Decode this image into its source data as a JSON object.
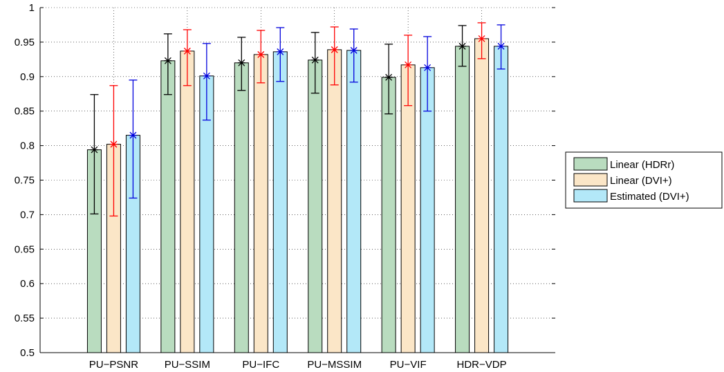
{
  "chart_data": {
    "type": "bar",
    "categories": [
      "PU−PSNR",
      "PU−SSIM",
      "PU−IFC",
      "PU−MSSIM",
      "PU−VIF",
      "HDR−VDP"
    ],
    "ylim": [
      0.5,
      1
    ],
    "yticks": [
      "0.5",
      "0.55",
      "0.6",
      "0.65",
      "0.7",
      "0.75",
      "0.8",
      "0.85",
      "0.9",
      "0.95",
      "1"
    ],
    "grid": true,
    "legend_position": "right",
    "series": [
      {
        "name": "Linear (HDRr)",
        "color": "#b9dcbf",
        "error_color": "#000000",
        "values": [
          0.794,
          0.923,
          0.92,
          0.924,
          0.899,
          0.944
        ],
        "err_low": [
          0.701,
          0.874,
          0.88,
          0.876,
          0.846,
          0.915
        ],
        "err_high": [
          0.874,
          0.962,
          0.957,
          0.964,
          0.947,
          0.974
        ]
      },
      {
        "name": "Linear (DVI+)",
        "color": "#fbe6c7",
        "error_color": "#ff0000",
        "values": [
          0.802,
          0.937,
          0.932,
          0.939,
          0.917,
          0.955
        ],
        "err_low": [
          0.698,
          0.887,
          0.891,
          0.888,
          0.858,
          0.926
        ],
        "err_high": [
          0.887,
          0.968,
          0.967,
          0.972,
          0.96,
          0.978
        ]
      },
      {
        "name": "Estimated (DVI+)",
        "color": "#b3e8f8",
        "error_color": "#0000dd",
        "values": [
          0.815,
          0.901,
          0.936,
          0.938,
          0.913,
          0.944
        ],
        "err_low": [
          0.724,
          0.837,
          0.893,
          0.892,
          0.85,
          0.911
        ],
        "err_high": [
          0.895,
          0.948,
          0.971,
          0.969,
          0.958,
          0.975
        ]
      }
    ]
  }
}
